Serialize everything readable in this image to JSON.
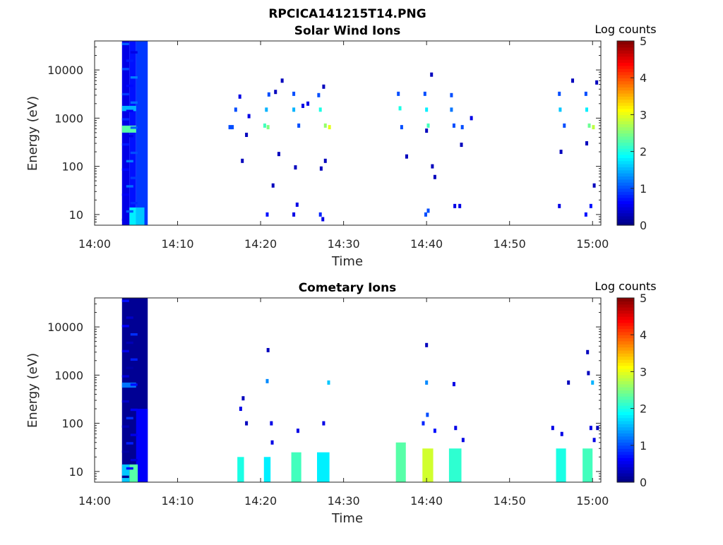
{
  "figure": {
    "filename": "RPCICA141215T14.PNG"
  },
  "colorbar": {
    "label": "Log counts",
    "ticks": [
      "0",
      "1",
      "2",
      "3",
      "4",
      "5"
    ],
    "range": [
      0,
      5
    ],
    "colormap": "jet"
  },
  "chart_data": [
    {
      "type": "heatmap",
      "title": "Solar Wind Ions",
      "xlabel": "Time",
      "ylabel": "Energy (eV)",
      "xticks": [
        "14:00",
        "14:10",
        "14:20",
        "14:30",
        "14:40",
        "14:50",
        "15:00"
      ],
      "xlim_minutes": [
        0,
        61
      ],
      "yticks": [
        "10",
        "100",
        "1000",
        "10000"
      ],
      "ylim": [
        6,
        40000
      ],
      "yscale": "log",
      "blocks": [
        {
          "t0": 3.3,
          "t1": 4.2,
          "e0": 6,
          "e1": 40000,
          "value": 0.5
        },
        {
          "t0": 4.2,
          "t1": 5.0,
          "e0": 6,
          "e1": 40000,
          "value": 0.7
        },
        {
          "t0": 5.0,
          "t1": 6.4,
          "e0": 6,
          "e1": 40000,
          "value": 0.9
        },
        {
          "t0": 3.3,
          "t1": 5.0,
          "e0": 500,
          "e1": 700,
          "value": 2.3
        },
        {
          "t0": 3.3,
          "t1": 5.0,
          "e0": 1400,
          "e1": 1800,
          "value": 1.5
        },
        {
          "t0": 4.2,
          "t1": 5.0,
          "e0": 6,
          "e1": 14,
          "value": 1.8
        },
        {
          "t0": 5.0,
          "t1": 6.0,
          "e0": 6,
          "e1": 14,
          "value": 1.6
        }
      ],
      "points": [
        {
          "t": 16.3,
          "e": 650,
          "value": 1.0
        },
        {
          "t": 16.6,
          "e": 650,
          "value": 1.0
        },
        {
          "t": 17.0,
          "e": 1500,
          "value": 1.0
        },
        {
          "t": 17.5,
          "e": 2800,
          "value": 0.5
        },
        {
          "t": 17.8,
          "e": 130,
          "value": 0.3
        },
        {
          "t": 18.3,
          "e": 450,
          "value": 0.3
        },
        {
          "t": 18.6,
          "e": 1100,
          "value": 0.5
        },
        {
          "t": 20.5,
          "e": 700,
          "value": 2.2
        },
        {
          "t": 20.9,
          "e": 650,
          "value": 2.5
        },
        {
          "t": 20.7,
          "e": 1500,
          "value": 1.5
        },
        {
          "t": 21.0,
          "e": 3100,
          "value": 1.0
        },
        {
          "t": 21.5,
          "e": 40,
          "value": 0.3
        },
        {
          "t": 21.8,
          "e": 3500,
          "value": 0.3
        },
        {
          "t": 22.2,
          "e": 180,
          "value": 0.3
        },
        {
          "t": 22.6,
          "e": 6000,
          "value": 0.3
        },
        {
          "t": 24.0,
          "e": 3200,
          "value": 1.0
        },
        {
          "t": 24.0,
          "e": 1500,
          "value": 1.5
        },
        {
          "t": 24.6,
          "e": 700,
          "value": 1.0
        },
        {
          "t": 25.1,
          "e": 1800,
          "value": 0.5
        },
        {
          "t": 25.7,
          "e": 2000,
          "value": 0.5
        },
        {
          "t": 24.2,
          "e": 95,
          "value": 0.3
        },
        {
          "t": 27.0,
          "e": 3000,
          "value": 1.0
        },
        {
          "t": 27.2,
          "e": 1500,
          "value": 2.0
        },
        {
          "t": 27.8,
          "e": 700,
          "value": 2.6
        },
        {
          "t": 28.3,
          "e": 650,
          "value": 3.0
        },
        {
          "t": 27.6,
          "e": 4500,
          "value": 0.3
        },
        {
          "t": 27.3,
          "e": 90,
          "value": 0.3
        },
        {
          "t": 27.8,
          "e": 130,
          "value": 0.3
        },
        {
          "t": 36.6,
          "e": 3200,
          "value": 1.0
        },
        {
          "t": 36.8,
          "e": 1600,
          "value": 2.0
        },
        {
          "t": 37.0,
          "e": 650,
          "value": 1.0
        },
        {
          "t": 37.6,
          "e": 160,
          "value": 0.3
        },
        {
          "t": 39.8,
          "e": 3200,
          "value": 1.0
        },
        {
          "t": 40.0,
          "e": 1500,
          "value": 1.8
        },
        {
          "t": 40.2,
          "e": 700,
          "value": 2.2
        },
        {
          "t": 40.6,
          "e": 8000,
          "value": 0.3
        },
        {
          "t": 40.0,
          "e": 550,
          "value": 0.3
        },
        {
          "t": 40.7,
          "e": 100,
          "value": 0.3
        },
        {
          "t": 41.0,
          "e": 60,
          "value": 0.3
        },
        {
          "t": 43.0,
          "e": 3000,
          "value": 1.0
        },
        {
          "t": 43.0,
          "e": 1500,
          "value": 1.2
        },
        {
          "t": 43.3,
          "e": 700,
          "value": 1.0
        },
        {
          "t": 44.3,
          "e": 650,
          "value": 1.0
        },
        {
          "t": 44.2,
          "e": 280,
          "value": 0.3
        },
        {
          "t": 45.4,
          "e": 1000,
          "value": 0.5
        },
        {
          "t": 56.0,
          "e": 3200,
          "value": 1.0
        },
        {
          "t": 56.1,
          "e": 1500,
          "value": 1.6
        },
        {
          "t": 56.6,
          "e": 700,
          "value": 1.0
        },
        {
          "t": 56.2,
          "e": 200,
          "value": 0.3
        },
        {
          "t": 57.6,
          "e": 6000,
          "value": 0.3
        },
        {
          "t": 59.2,
          "e": 3200,
          "value": 1.0
        },
        {
          "t": 59.3,
          "e": 1500,
          "value": 1.8
        },
        {
          "t": 59.6,
          "e": 700,
          "value": 2.4
        },
        {
          "t": 60.1,
          "e": 650,
          "value": 2.8
        },
        {
          "t": 59.3,
          "e": 300,
          "value": 0.3
        },
        {
          "t": 60.2,
          "e": 40,
          "value": 0.3
        },
        {
          "t": 60.5,
          "e": 5500,
          "value": 0.3
        },
        {
          "t": 20.8,
          "e": 10,
          "value": 0.7
        },
        {
          "t": 24.0,
          "e": 10,
          "value": 0.5
        },
        {
          "t": 24.4,
          "e": 16,
          "value": 0.5
        },
        {
          "t": 27.2,
          "e": 10,
          "value": 0.8
        },
        {
          "t": 27.5,
          "e": 8,
          "value": 0.5
        },
        {
          "t": 39.9,
          "e": 10,
          "value": 1.0
        },
        {
          "t": 40.2,
          "e": 12,
          "value": 1.0
        },
        {
          "t": 43.4,
          "e": 15,
          "value": 0.5
        },
        {
          "t": 44.0,
          "e": 15,
          "value": 0.5
        },
        {
          "t": 56.0,
          "e": 15,
          "value": 0.5
        },
        {
          "t": 59.2,
          "e": 10,
          "value": 0.7
        },
        {
          "t": 59.8,
          "e": 15,
          "value": 0.7
        }
      ]
    },
    {
      "type": "heatmap",
      "title": "Cometary Ions",
      "xlabel": "Time",
      "ylabel": "Energy (eV)",
      "xticks": [
        "14:00",
        "14:10",
        "14:20",
        "14:30",
        "14:40",
        "14:50",
        "15:00"
      ],
      "xlim_minutes": [
        0,
        61
      ],
      "yticks": [
        "10",
        "100",
        "1000",
        "10000"
      ],
      "ylim": [
        6,
        40000
      ],
      "yscale": "log",
      "blocks": [
        {
          "t0": 3.3,
          "t1": 6.4,
          "e0": 6,
          "e1": 40000,
          "value": 0.1
        },
        {
          "t0": 5.0,
          "t1": 6.4,
          "e0": 6,
          "e1": 200,
          "value": 0.6
        },
        {
          "t0": 3.3,
          "t1": 5.0,
          "e0": 550,
          "e1": 700,
          "value": 1.2
        },
        {
          "t0": 4.2,
          "t1": 5.2,
          "e0": 6,
          "e1": 14,
          "value": 2.3
        },
        {
          "t0": 3.3,
          "t1": 4.2,
          "e0": 6,
          "e1": 14,
          "value": 1.6
        },
        {
          "t0": 17.2,
          "t1": 18.0,
          "e0": 6,
          "e1": 20,
          "value": 2.0
        },
        {
          "t0": 20.4,
          "t1": 21.2,
          "e0": 6,
          "e1": 20,
          "value": 1.8
        },
        {
          "t0": 23.7,
          "t1": 24.9,
          "e0": 6,
          "e1": 25,
          "value": 2.2
        },
        {
          "t0": 26.8,
          "t1": 28.3,
          "e0": 6,
          "e1": 25,
          "value": 1.8
        },
        {
          "t0": 36.3,
          "t1": 37.5,
          "e0": 6,
          "e1": 40,
          "value": 2.3
        },
        {
          "t0": 39.5,
          "t1": 40.8,
          "e0": 6,
          "e1": 30,
          "value": 2.9
        },
        {
          "t0": 42.7,
          "t1": 44.2,
          "e0": 6,
          "e1": 30,
          "value": 2.1
        },
        {
          "t0": 55.6,
          "t1": 56.8,
          "e0": 6,
          "e1": 30,
          "value": 2.0
        },
        {
          "t0": 58.8,
          "t1": 60.0,
          "e0": 6,
          "e1": 30,
          "value": 2.2
        }
      ],
      "points": [
        {
          "t": 17.6,
          "e": 200,
          "value": 0.5
        },
        {
          "t": 17.9,
          "e": 330,
          "value": 0.3
        },
        {
          "t": 18.3,
          "e": 100,
          "value": 0.3
        },
        {
          "t": 20.8,
          "e": 750,
          "value": 1.3
        },
        {
          "t": 20.9,
          "e": 3300,
          "value": 0.3
        },
        {
          "t": 21.4,
          "e": 40,
          "value": 0.5
        },
        {
          "t": 21.3,
          "e": 100,
          "value": 0.5
        },
        {
          "t": 24.5,
          "e": 70,
          "value": 0.5
        },
        {
          "t": 27.6,
          "e": 100,
          "value": 0.5
        },
        {
          "t": 28.2,
          "e": 700,
          "value": 1.6
        },
        {
          "t": 39.6,
          "e": 100,
          "value": 0.8
        },
        {
          "t": 40.1,
          "e": 150,
          "value": 1.0
        },
        {
          "t": 40.0,
          "e": 700,
          "value": 1.3
        },
        {
          "t": 40.0,
          "e": 4200,
          "value": 0.3
        },
        {
          "t": 41.0,
          "e": 70,
          "value": 0.7
        },
        {
          "t": 43.3,
          "e": 650,
          "value": 0.5
        },
        {
          "t": 43.5,
          "e": 80,
          "value": 0.5
        },
        {
          "t": 44.4,
          "e": 45,
          "value": 0.5
        },
        {
          "t": 55.2,
          "e": 80,
          "value": 0.5
        },
        {
          "t": 56.3,
          "e": 60,
          "value": 0.5
        },
        {
          "t": 57.1,
          "e": 700,
          "value": 0.3
        },
        {
          "t": 59.5,
          "e": 1100,
          "value": 0.3
        },
        {
          "t": 59.4,
          "e": 3000,
          "value": 0.3
        },
        {
          "t": 60.0,
          "e": 700,
          "value": 1.5
        },
        {
          "t": 60.2,
          "e": 45,
          "value": 0.5
        },
        {
          "t": 59.8,
          "e": 80,
          "value": 0.5
        },
        {
          "t": 60.6,
          "e": 80,
          "value": 0.3
        }
      ]
    }
  ]
}
